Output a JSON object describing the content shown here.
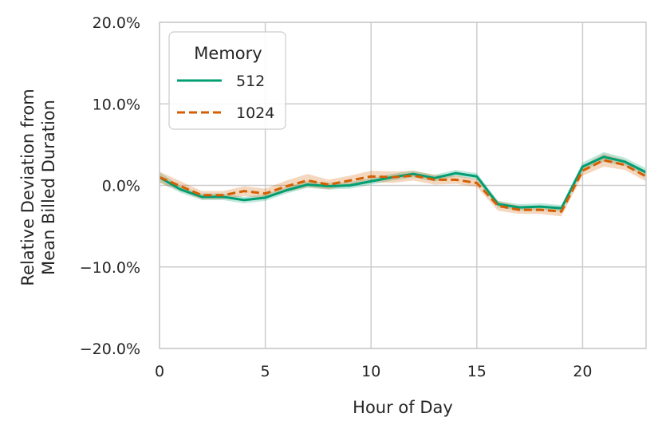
{
  "chart_data": {
    "type": "line",
    "xlabel": "Hour of Day",
    "ylabel": [
      "Relative Deviation from",
      "Mean Billed Duration"
    ],
    "xlim": [
      0,
      23
    ],
    "ylim": [
      -20,
      20
    ],
    "x_ticks": [
      0,
      5,
      10,
      15,
      20
    ],
    "y_ticks": [
      -20,
      -10,
      0,
      10,
      20
    ],
    "y_tick_labels": [
      "−20.0%",
      "−10.0%",
      "0.0%",
      "10.0%",
      "20.0%"
    ],
    "x_tick_labels": [
      "0",
      "5",
      "10",
      "15",
      "20"
    ],
    "grid": true,
    "legend": {
      "title": "Memory",
      "placement": "top-left"
    },
    "x": [
      0,
      1,
      2,
      3,
      4,
      5,
      6,
      7,
      8,
      9,
      10,
      11,
      12,
      13,
      14,
      15,
      16,
      17,
      18,
      19,
      20,
      21,
      22,
      23
    ],
    "series": [
      {
        "name": "512",
        "color": "#009e73",
        "dash": "solid",
        "values": [
          1.0,
          -0.5,
          -1.4,
          -1.4,
          -1.8,
          -1.5,
          -0.6,
          0.1,
          -0.1,
          0.0,
          0.5,
          1.0,
          1.4,
          0.9,
          1.5,
          1.1,
          -2.3,
          -2.7,
          -2.6,
          -2.8,
          2.3,
          3.5,
          2.9,
          1.6
        ],
        "band": [
          0.6,
          0.4,
          0.4,
          0.4,
          0.4,
          0.4,
          0.4,
          0.4,
          0.4,
          0.4,
          0.4,
          0.4,
          0.4,
          0.4,
          0.4,
          0.4,
          0.4,
          0.4,
          0.4,
          0.4,
          0.5,
          0.6,
          0.5,
          0.5
        ]
      },
      {
        "name": "1024",
        "color": "#d55e00",
        "dash": "dashed",
        "values": [
          1.0,
          -0.1,
          -1.2,
          -1.2,
          -0.7,
          -1.0,
          -0.1,
          0.6,
          0.1,
          0.6,
          1.1,
          1.0,
          1.2,
          0.7,
          0.7,
          0.3,
          -2.5,
          -3.0,
          -3.0,
          -3.2,
          1.8,
          3.1,
          2.5,
          1.1
        ],
        "band": [
          0.7,
          0.6,
          0.5,
          0.5,
          0.6,
          0.6,
          0.7,
          0.8,
          0.6,
          0.6,
          0.7,
          0.7,
          0.6,
          0.6,
          0.5,
          0.5,
          0.6,
          0.5,
          0.5,
          0.6,
          0.6,
          0.8,
          0.6,
          0.6
        ]
      }
    ]
  }
}
